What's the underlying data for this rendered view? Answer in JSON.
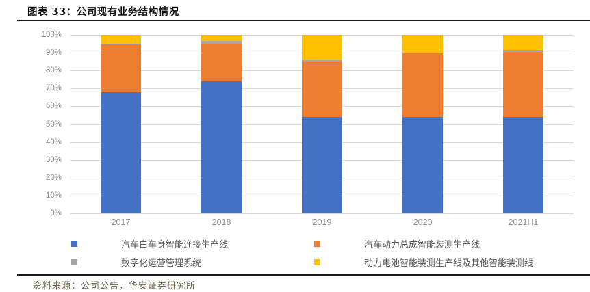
{
  "header": {
    "title": "图表 33：公司现有业务结构情况"
  },
  "footer": {
    "source": "资料来源：公司公告，华安证券研究所"
  },
  "colors": {
    "blue": "#4472C4",
    "orange": "#ED7D31",
    "gray": "#A5A5A5",
    "yellow": "#FFC000",
    "gridline": "#D9D9D9",
    "axis_text": "#8C8C8C",
    "legend_text": "#595959",
    "rule": "#1A1A1A",
    "source_text": "#6F6347"
  },
  "chart_data": {
    "type": "bar",
    "stacked": true,
    "percent_stacked": true,
    "title": "公司现有业务结构情况",
    "categories": [
      "2017",
      "2018",
      "2019",
      "2020",
      "2021H1"
    ],
    "series": [
      {
        "name": "汽车白车身智能连接生产线",
        "color": "#4472C4",
        "values": [
          68,
          74,
          54,
          54,
          54
        ]
      },
      {
        "name": "汽车动力总成智能装测生产线",
        "color": "#ED7D31",
        "values": [
          26.5,
          21,
          31,
          35.5,
          36.5
        ]
      },
      {
        "name": "数字化运营管理系统",
        "color": "#A5A5A5",
        "values": [
          0.5,
          1.5,
          1,
          0.5,
          1
        ]
      },
      {
        "name": "动力电池智能装测生产线及其他智能装测线",
        "color": "#FFC000",
        "values": [
          5,
          3.5,
          14,
          10,
          8.5
        ]
      }
    ],
    "xlabel": "",
    "ylabel": "",
    "ylim": [
      0,
      100
    ],
    "yticks": [
      "0%",
      "10%",
      "20%",
      "30%",
      "40%",
      "50%",
      "60%",
      "70%",
      "80%",
      "90%",
      "100%"
    ],
    "grid": true,
    "legend_position": "bottom",
    "legend_columns": 2
  }
}
